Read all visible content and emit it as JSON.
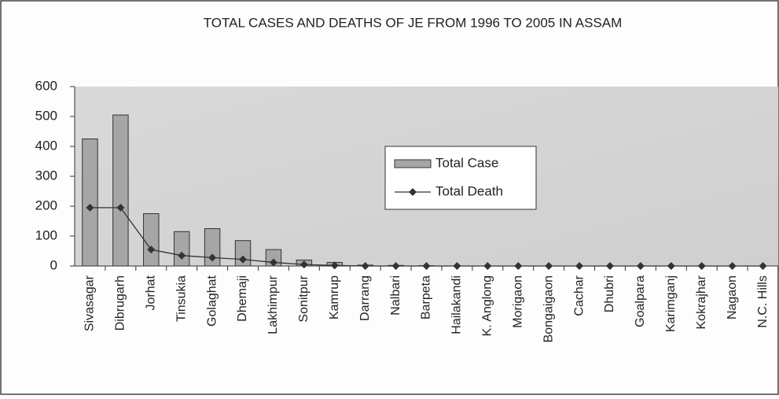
{
  "chart_data": {
    "type": "bar",
    "title": "TOTAL CASES AND DEATHS OF JE FROM 1996 TO 2005 IN ASSAM",
    "categories": [
      "Sivasagar",
      "Dibrugarh",
      "Jorhat",
      "Tinsukia",
      "Golaghat",
      "Dhemaji",
      "Lakhimpur",
      "Sonitpur",
      "Kamrup",
      "Darrang",
      "Nalbari",
      "Barpeta",
      "Hailakandi",
      "K. Anglong",
      "Morigaon",
      "Bongaigaon",
      "Cachar",
      "Dhubri",
      "Goalpara",
      "Karimganj",
      "Kokrajhar",
      "Nagaon",
      "N.C. Hills"
    ],
    "series": [
      {
        "name": "Total Case",
        "type": "bar",
        "color": "#a6a6a6",
        "values": [
          425,
          505,
          175,
          115,
          125,
          85,
          55,
          20,
          12,
          3,
          2,
          1,
          0,
          0,
          0,
          0,
          0,
          0,
          0,
          0,
          0,
          0,
          0
        ]
      },
      {
        "name": "Total Death",
        "type": "line",
        "color": "#333333",
        "values": [
          195,
          195,
          55,
          35,
          28,
          22,
          12,
          5,
          2,
          0,
          0,
          0,
          0,
          0,
          0,
          0,
          0,
          0,
          0,
          0,
          0,
          0,
          0
        ]
      }
    ],
    "ylim": [
      0,
      600
    ],
    "yticks": [
      0,
      100,
      200,
      300,
      400,
      500,
      600
    ],
    "grid": false
  }
}
